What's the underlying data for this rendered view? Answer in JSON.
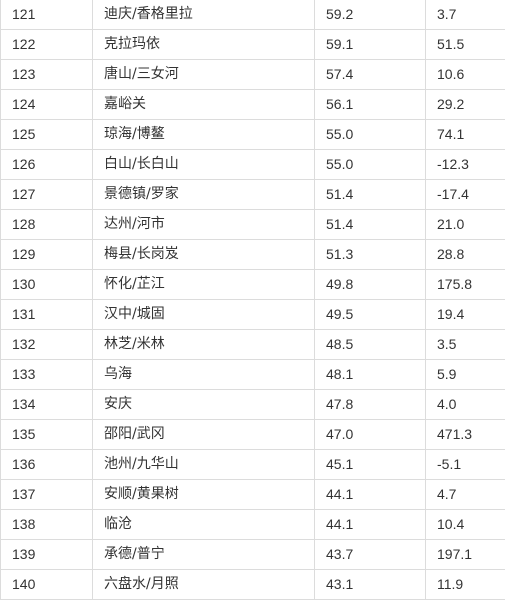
{
  "rows": [
    {
      "rank": "121",
      "city": "迪庆/香格里拉",
      "score": "59.2",
      "change": "3.7"
    },
    {
      "rank": "122",
      "city": "克拉玛依",
      "score": "59.1",
      "change": "51.5"
    },
    {
      "rank": "123",
      "city": "唐山/三女河",
      "score": "57.4",
      "change": "10.6"
    },
    {
      "rank": "124",
      "city": "嘉峪关",
      "score": "56.1",
      "change": "29.2"
    },
    {
      "rank": "125",
      "city": "琼海/博鳌",
      "score": "55.0",
      "change": "74.1"
    },
    {
      "rank": "126",
      "city": "白山/长白山",
      "score": "55.0",
      "change": "-12.3"
    },
    {
      "rank": "127",
      "city": "景德镇/罗家",
      "score": "51.4",
      "change": "-17.4"
    },
    {
      "rank": "128",
      "city": "达州/河市",
      "score": "51.4",
      "change": "21.0"
    },
    {
      "rank": "129",
      "city": "梅县/长岗岌",
      "score": "51.3",
      "change": "28.8"
    },
    {
      "rank": "130",
      "city": "怀化/芷江",
      "score": "49.8",
      "change": "175.8"
    },
    {
      "rank": "131",
      "city": "汉中/城固",
      "score": "49.5",
      "change": "19.4"
    },
    {
      "rank": "132",
      "city": "林芝/米林",
      "score": "48.5",
      "change": "3.5"
    },
    {
      "rank": "133",
      "city": "乌海",
      "score": "48.1",
      "change": "5.9"
    },
    {
      "rank": "134",
      "city": "安庆",
      "score": "47.8",
      "change": "4.0"
    },
    {
      "rank": "135",
      "city": "邵阳/武冈",
      "score": "47.0",
      "change": "471.3"
    },
    {
      "rank": "136",
      "city": "池州/九华山",
      "score": "45.1",
      "change": "-5.1"
    },
    {
      "rank": "137",
      "city": "安顺/黄果树",
      "score": "44.1",
      "change": "4.7"
    },
    {
      "rank": "138",
      "city": "临沧",
      "score": "44.1",
      "change": "10.4"
    },
    {
      "rank": "139",
      "city": "承德/普宁",
      "score": "43.7",
      "change": "197.1"
    },
    {
      "rank": "140",
      "city": "六盘水/月照",
      "score": "43.1",
      "change": "11.9"
    }
  ]
}
